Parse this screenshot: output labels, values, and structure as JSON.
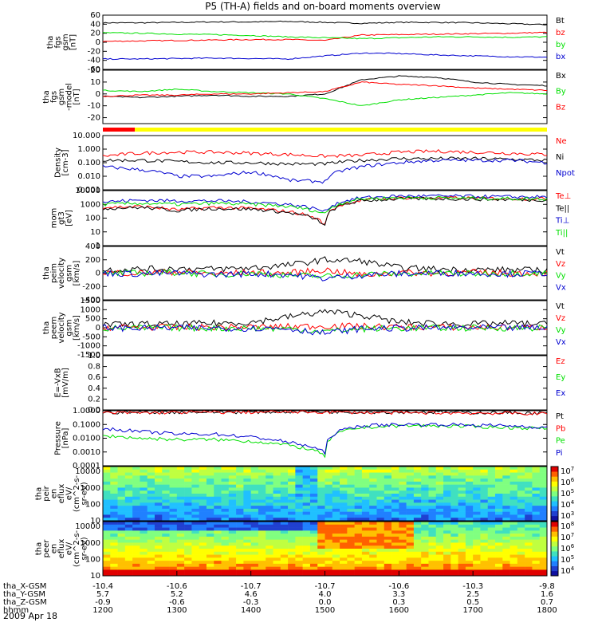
{
  "title": "P5 (TH-A) fields and on-board moments overview",
  "date": "2009 Apr 18",
  "colors": {
    "black": "#000000",
    "red": "#ff0000",
    "green": "#00e000",
    "blue": "#0000d0",
    "yellow": "#ffff00"
  },
  "time_axis": {
    "start": "1200",
    "end": "1800",
    "tick_labels": [
      "1200",
      "1300",
      "1400",
      "1500",
      "1600",
      "1700",
      "1800"
    ],
    "row_labels": [
      "tha_X-GSM",
      "tha_Y-GSM",
      "tha_Z-GSM",
      "hhmm"
    ],
    "rows": [
      [
        "-10.4",
        "-10.6",
        "-10.7",
        "-10.7",
        "-10.6",
        "-10.3",
        "-9.8"
      ],
      [
        "5.7",
        "5.2",
        "4.6",
        "4.0",
        "3.3",
        "2.5",
        "1.6"
      ],
      [
        "-0.9",
        "-0.6",
        "-0.3",
        "0.0",
        "0.3",
        "0.5",
        "0.7"
      ]
    ]
  },
  "panels": [
    {
      "type": "line",
      "ylabel": [
        "tha",
        "fgs",
        "gsm",
        "[nT]"
      ],
      "ylim": [
        -60,
        60
      ],
      "ticks": [
        "60",
        "40",
        "20",
        "0",
        "-20",
        "-40",
        "-60"
      ],
      "series": [
        {
          "name": "Bt",
          "color": "#000000",
          "values": [
            43,
            43,
            44,
            45,
            45,
            46,
            44,
            42,
            44,
            44,
            43,
            41,
            39
          ]
        },
        {
          "name": "bz",
          "color": "#ff0000",
          "values": [
            2,
            3,
            4,
            5,
            6,
            6,
            4,
            16,
            17,
            18,
            19,
            20,
            22
          ]
        },
        {
          "name": "by",
          "color": "#00e000",
          "values": [
            21,
            20,
            18,
            17,
            15,
            12,
            10,
            8,
            10,
            12,
            12,
            11,
            12
          ]
        },
        {
          "name": "bx",
          "color": "#0000d0",
          "values": [
            -37,
            -37,
            -36,
            -35,
            -36,
            -37,
            -30,
            -24,
            -25,
            -28,
            -30,
            -32,
            -33
          ]
        }
      ]
    },
    {
      "type": "line",
      "ylabel": [
        "tha",
        "fgs",
        "gsm",
        "-model",
        "[nT]"
      ],
      "ylim": [
        -25,
        20
      ],
      "ticks": [
        "20",
        "10",
        "0",
        "-10",
        "-20"
      ],
      "series": [
        {
          "name": "Bx",
          "color": "#000000",
          "values": [
            -2,
            -3,
            -2,
            -1,
            -2,
            -2,
            0,
            12,
            15,
            14,
            10,
            8,
            7
          ]
        },
        {
          "name": "By",
          "color": "#00e000",
          "values": [
            3,
            2,
            4,
            2,
            1,
            0,
            -4,
            -10,
            -5,
            -3,
            -1,
            1,
            0
          ]
        },
        {
          "name": "Bz",
          "color": "#ff0000",
          "values": [
            -2,
            -1,
            -1,
            0,
            0,
            1,
            2,
            10,
            8,
            7,
            5,
            4,
            3
          ]
        }
      ]
    },
    {
      "type": "log",
      "ylabel": [
        "Density",
        "[cm-3]"
      ],
      "ylim": [
        0.001,
        10
      ],
      "ticks": [
        "10.000",
        "1.000",
        "0.100",
        "0.010",
        "0.001"
      ],
      "series": [
        {
          "name": "Ne",
          "color": "#ff0000",
          "values": [
            0.3,
            0.5,
            0.6,
            0.6,
            0.5,
            0.4,
            0.3,
            0.35,
            0.6,
            0.7,
            0.6,
            0.5,
            0.4
          ]
        },
        {
          "name": "Ni",
          "color": "#000000",
          "values": [
            0.15,
            0.15,
            0.12,
            0.1,
            0.1,
            0.08,
            0.08,
            0.15,
            0.2,
            0.2,
            0.2,
            0.18,
            0.15
          ]
        },
        {
          "name": "Npot",
          "color": "#0000d0",
          "values": [
            0.05,
            0.03,
            0.01,
            0.01,
            0.02,
            0.005,
            0.004,
            0.05,
            0.1,
            0.15,
            0.15,
            0.15,
            0.1
          ]
        }
      ]
    },
    {
      "type": "log",
      "ylabel": [
        "mom",
        "gt3",
        "[eV]"
      ],
      "ylim": [
        1,
        10000
      ],
      "ticks": [
        "10000",
        "1000",
        "100",
        "10",
        "1"
      ],
      "series": [
        {
          "name": "Te⊥",
          "color": "#ff0000",
          "values": [
            600,
            700,
            400,
            600,
            500,
            300,
            30,
            2000,
            3000,
            3000,
            2800,
            2600,
            2500
          ]
        },
        {
          "name": "Te||",
          "color": "#000000",
          "values": [
            500,
            600,
            350,
            500,
            450,
            250,
            25,
            1800,
            2500,
            2600,
            2400,
            2200,
            2100
          ]
        },
        {
          "name": "Ti⊥",
          "color": "#0000d0",
          "values": [
            1500,
            2000,
            1800,
            1800,
            1500,
            1000,
            300,
            3000,
            4000,
            4000,
            3800,
            3500,
            3500
          ]
        },
        {
          "name": "Ti||",
          "color": "#00e000",
          "values": [
            1000,
            1200,
            1000,
            1200,
            1000,
            700,
            200,
            2500,
            3000,
            3000,
            2800,
            2600,
            2500
          ]
        }
      ]
    },
    {
      "type": "line",
      "ylabel": [
        "tha",
        "peim",
        "velocity",
        "gsm",
        "[km/s]"
      ],
      "ylim": [
        -400,
        400
      ],
      "ticks": [
        "400",
        "200",
        "0",
        "-200",
        "-400"
      ],
      "series": [
        {
          "name": "Vt",
          "color": "#000000",
          "values": [
            50,
            60,
            70,
            60,
            80,
            120,
            200,
            180,
            80,
            60,
            50,
            50,
            40
          ]
        },
        {
          "name": "Vz",
          "color": "#ff0000",
          "values": [
            10,
            0,
            20,
            -10,
            10,
            0,
            50,
            -30,
            10,
            0,
            10,
            0,
            0
          ]
        },
        {
          "name": "Vy",
          "color": "#00e000",
          "values": [
            -10,
            0,
            10,
            -20,
            0,
            -30,
            -50,
            -20,
            -10,
            0,
            -10,
            0,
            0
          ]
        },
        {
          "name": "Vx",
          "color": "#0000d0",
          "values": [
            0,
            -10,
            0,
            -20,
            -10,
            -20,
            -80,
            -30,
            -10,
            0,
            0,
            -10,
            0
          ]
        }
      ]
    },
    {
      "type": "line",
      "ylabel": [
        "tha",
        "peem",
        "velocity",
        "gsm",
        "[km/s]"
      ],
      "ylim": [
        -1500,
        1500
      ],
      "ticks": [
        "1500",
        "1000",
        "500",
        "0",
        "-500",
        "-1000",
        "-1500"
      ],
      "series": [
        {
          "name": "Vt",
          "color": "#000000",
          "values": [
            150,
            200,
            200,
            250,
            300,
            600,
            900,
            700,
            300,
            250,
            200,
            250,
            200
          ]
        },
        {
          "name": "Vz",
          "color": "#ff0000",
          "values": [
            20,
            30,
            20,
            30,
            40,
            60,
            100,
            80,
            40,
            30,
            20,
            30,
            20
          ]
        },
        {
          "name": "Vy",
          "color": "#00e000",
          "values": [
            -30,
            -20,
            -10,
            -20,
            -30,
            -50,
            -200,
            -60,
            -20,
            -10,
            -10,
            -10,
            0
          ]
        },
        {
          "name": "Vx",
          "color": "#0000d0",
          "values": [
            0,
            -20,
            -10,
            -20,
            -20,
            -40,
            -300,
            -50,
            -20,
            -10,
            0,
            -10,
            0
          ]
        }
      ]
    },
    {
      "type": "line",
      "ylabel": [
        "E=-VxB",
        "[mV/m]"
      ],
      "ylim": [
        0,
        1
      ],
      "ticks": [
        "1.0",
        "0.8",
        "0.6",
        "0.4",
        "0.2",
        "0.0"
      ],
      "series": [
        {
          "name": "Ez",
          "color": "#ff0000",
          "values": []
        },
        {
          "name": "Ey",
          "color": "#00e000",
          "values": []
        },
        {
          "name": "Ex",
          "color": "#0000d0",
          "values": []
        }
      ]
    },
    {
      "type": "log",
      "ylabel": [
        "Pressure",
        "[nPa]"
      ],
      "ylim": [
        0.0001,
        1
      ],
      "ticks": [
        "1.0000",
        "0.1000",
        "0.0100",
        "0.0010",
        "0.0001"
      ],
      "series": [
        {
          "name": "Pt",
          "color": "#000000",
          "values": [
            0.75,
            0.75,
            0.8,
            0.8,
            0.8,
            0.85,
            0.85,
            0.8,
            0.8,
            0.78,
            0.75,
            0.7,
            0.65
          ]
        },
        {
          "name": "Pb",
          "color": "#ff0000",
          "values": [
            0.7,
            0.7,
            0.75,
            0.78,
            0.78,
            0.82,
            0.8,
            0.75,
            0.7,
            0.7,
            0.68,
            0.65,
            0.6
          ]
        },
        {
          "name": "Pe",
          "color": "#00e000",
          "values": [
            0.015,
            0.01,
            0.008,
            0.008,
            0.006,
            0.003,
            0.0005,
            0.06,
            0.08,
            0.08,
            0.07,
            0.06,
            0.05
          ]
        },
        {
          "name": "Pi",
          "color": "#0000d0",
          "values": [
            0.05,
            0.03,
            0.02,
            0.02,
            0.012,
            0.005,
            0.0008,
            0.08,
            0.1,
            0.1,
            0.09,
            0.08,
            0.06
          ]
        }
      ]
    },
    {
      "type": "spectrogram",
      "ylabel": [
        "tha",
        "peir",
        "en",
        "eflux",
        "eV/",
        "(cm^2-s-",
        "sr-eV)"
      ],
      "ylim": [
        10,
        20000
      ],
      "ticks": [
        "10000",
        "1000",
        "100",
        "10"
      ],
      "colorbar_ticks": [
        "10^7",
        "10^6",
        "10^5",
        "10^4",
        "10^3"
      ]
    },
    {
      "type": "spectrogram",
      "ylabel": [
        "tha",
        "peer",
        "en",
        "eflux",
        "eV/",
        "(cm^2-s-",
        "sr-eV)"
      ],
      "ylim": [
        10,
        20000
      ],
      "ticks": [
        "10000",
        "1000",
        "100",
        "10"
      ],
      "colorbar_ticks": [
        "10^8",
        "10^7",
        "10^6",
        "10^5",
        "10^4"
      ]
    }
  ]
}
